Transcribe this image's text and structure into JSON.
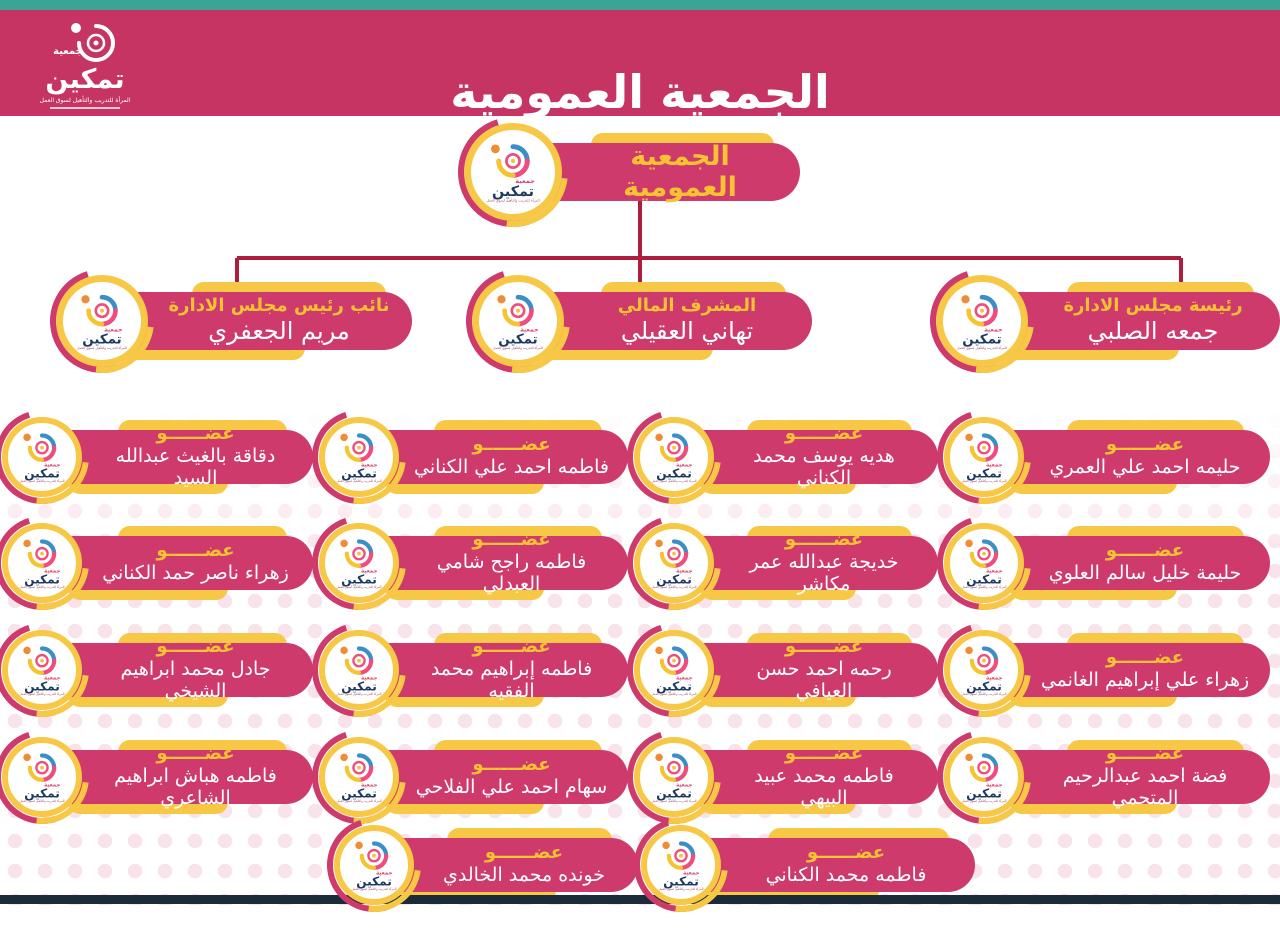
{
  "brand": {
    "assoc": "جمعية",
    "name": "تمكين",
    "tagline": "المرأة للتدريب والتأهيل لسوق العمل"
  },
  "header": {
    "title": "الجمعية العمومية"
  },
  "chart": {
    "root": {
      "title": "الجمعية العمومية"
    },
    "executives": [
      {
        "role": "رئيسة مجلس الادارة",
        "name": "جمعه الصلبي"
      },
      {
        "role": "المشرف المالي",
        "name": "تهاني العقيلي"
      },
      {
        "role": "نائب رئيس مجلس الادارة",
        "name": "مريم الجعفري"
      }
    ],
    "member_label": "عضــــــو",
    "members": [
      "حليمه احمد علي العمري",
      "هديه يوسف محمد الكناني",
      "فاطمه احمد علي الكناني",
      "دقاقة بالغيث عبدالله السيد",
      "حليمة خليل سالم العلوي",
      "خديجة عبدالله عمر مكاشر",
      "فاطمه راجح شامي العبدلي",
      "زهراء ناصر حمد الكناني",
      "زهراء علي إبراهيم الغانمي",
      "رحمه احمد حسن العيافي",
      "فاطمه إبراهيم محمد الفقيه",
      "جادل محمد ابراهيم الشيخي",
      "فضة احمد عبدالرحيم المتحمي",
      "فاطمه محمد عبيد البيهي",
      "سهام احمد علي الفلاحي",
      "فاطمه هباش ابراهيم الشاعري",
      "فاطمه محمد الكناني",
      "خونده محمد الخالدي"
    ]
  },
  "colors": {
    "header_pink": "#c63463",
    "pill_pink": "#ce3a6c",
    "accent_yellow": "#f6c845",
    "role_yellow": "#f9c233",
    "connector_red": "#ae1e3c",
    "teal_strip": "#3ba493",
    "footer_navy": "#1c2b39",
    "dot_pink": "#f9e3ea"
  }
}
